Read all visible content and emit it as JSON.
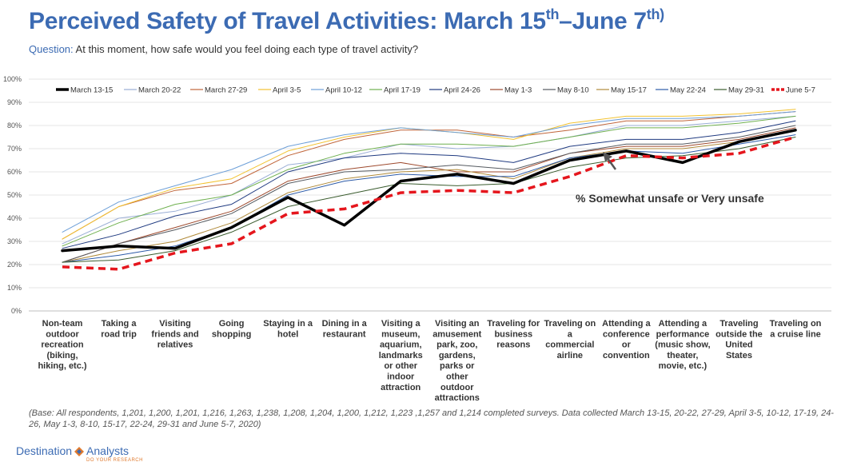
{
  "header": {
    "title_main": "Perceived Safety of Travel Activities: March 15",
    "title_sup1": "th",
    "title_mid": "–June 7",
    "title_sup2": "th)",
    "question_label": "Question:",
    "question_text": " At this moment, how safe would you feel doing each type of travel activity?"
  },
  "footer": {
    "base_note": "(Base: All respondents, 1,201, 1,200, 1,201, 1,216, 1,263, 1,238, 1,208, 1,204, 1,200, 1,212, 1,223 ,1,257 and 1,214 completed surveys. Data collected March 13-15, 20-22, 27-29, April 3-5, 10-12, 17-19, 24-26, May 1-3, 8-10, 15-17, 22-24, 29-31 and June 5-7, 2020)",
    "logo_text": "Destination",
    "logo_text2": "Analysts",
    "logo_tagline": "DO YOUR RESEARCH"
  },
  "chart_data": {
    "type": "line",
    "ylim": [
      0,
      100
    ],
    "yticks": [
      "0%",
      "10%",
      "20%",
      "30%",
      "40%",
      "50%",
      "60%",
      "70%",
      "80%",
      "90%",
      "100%"
    ],
    "categories": [
      "Non-team outdoor recreation (biking, hiking, etc.)",
      "Taking a road trip",
      "Visiting friends and relatives",
      "Going shopping",
      "Staying in a hotel",
      "Dining in a restaurant",
      "Visiting a museum, aquarium, landmarks or other indoor attraction",
      "Visiting an amusement park, zoo, gardens, parks or other outdoor attractions",
      "Traveling for business reasons",
      "Traveling on a commercial airline",
      "Attending a conference or convention",
      "Attending a performance (music show, theater, movie, etc.)",
      "Traveling outside the United States",
      "Traveling on a cruise line"
    ],
    "category_lines": [
      [
        "Non-team",
        "outdoor",
        "recreation",
        "(biking,",
        "hiking, etc.)"
      ],
      [
        "Taking a",
        "road trip"
      ],
      [
        "Visiting",
        "friends and",
        "relatives"
      ],
      [
        "Going",
        "shopping"
      ],
      [
        "Staying in a",
        "hotel"
      ],
      [
        "Dining in a",
        "restaurant"
      ],
      [
        "Visiting a",
        "museum,",
        "aquarium,",
        "landmarks",
        "or other",
        "indoor",
        "attraction"
      ],
      [
        "Visiting an",
        "amusement",
        "park, zoo,",
        "gardens,",
        "parks or",
        "other",
        "outdoor",
        "attractions"
      ],
      [
        "Traveling for",
        "business",
        "reasons"
      ],
      [
        "Traveling on",
        "a",
        "commercial",
        "airline"
      ],
      [
        "Attending a",
        "conference",
        "or",
        "convention"
      ],
      [
        "Attending a",
        "performance",
        "(music show,",
        "theater,",
        "movie, etc.)"
      ],
      [
        "Traveling",
        "outside the",
        "United",
        "States"
      ],
      [
        "Traveling on",
        "a cruise line"
      ]
    ],
    "series": [
      {
        "name": "March 13-15",
        "color": "#000000",
        "style": "bold",
        "values": [
          26,
          28,
          27,
          36,
          49,
          37,
          56,
          59,
          55,
          65,
          69,
          64,
          73,
          78
        ]
      },
      {
        "name": "March 20-22",
        "color": "#9aaed6",
        "style": "thin",
        "values": [
          29,
          40,
          43,
          50,
          63,
          66,
          72,
          70,
          71,
          75,
          80,
          80,
          82,
          84
        ]
      },
      {
        "name": "March 27-29",
        "color": "#c0653a",
        "style": "thin",
        "values": [
          31,
          45,
          52,
          55,
          67,
          74,
          78,
          78,
          75,
          78,
          82,
          82,
          84,
          86
        ]
      },
      {
        "name": "April 3-5",
        "color": "#f2c230",
        "style": "thin",
        "values": [
          31,
          45,
          53,
          57,
          69,
          75,
          79,
          77,
          74,
          81,
          84,
          84,
          85,
          87
        ]
      },
      {
        "name": "April 10-12",
        "color": "#6d9fd8",
        "style": "thin",
        "values": [
          34,
          47,
          54,
          61,
          71,
          76,
          79,
          77,
          75,
          80,
          83,
          83,
          84,
          86
        ]
      },
      {
        "name": "April 17-19",
        "color": "#6fb04f",
        "style": "thin",
        "values": [
          28,
          38,
          46,
          50,
          61,
          68,
          72,
          72,
          71,
          75,
          79,
          79,
          81,
          84
        ]
      },
      {
        "name": "April 24-26",
        "color": "#1f3a80",
        "style": "thin",
        "values": [
          27,
          33,
          41,
          46,
          60,
          66,
          68,
          67,
          64,
          71,
          74,
          74,
          77,
          82
        ]
      },
      {
        "name": "May 1-3",
        "color": "#9e4a2e",
        "style": "thin",
        "values": [
          21,
          29,
          36,
          43,
          56,
          61,
          64,
          60,
          60,
          68,
          71,
          71,
          74,
          79
        ]
      },
      {
        "name": "May 8-10",
        "color": "#555a60",
        "style": "thin",
        "values": [
          21,
          29,
          35,
          42,
          55,
          60,
          61,
          63,
          61,
          68,
          72,
          72,
          75,
          80
        ]
      },
      {
        "name": "May 15-17",
        "color": "#b08a3a",
        "style": "thin",
        "values": [
          21,
          26,
          30,
          38,
          51,
          57,
          60,
          61,
          57,
          66,
          70,
          70,
          73,
          78
        ]
      },
      {
        "name": "May 22-24",
        "color": "#2d5ba8",
        "style": "thin",
        "values": [
          21,
          24,
          28,
          36,
          50,
          56,
          59,
          58,
          58,
          66,
          69,
          68,
          72,
          76
        ]
      },
      {
        "name": "May 29-31",
        "color": "#3a5c2e",
        "style": "thin",
        "values": [
          21,
          22,
          26,
          34,
          45,
          50,
          55,
          54,
          55,
          62,
          66,
          67,
          70,
          75
        ]
      },
      {
        "name": "June 5-7",
        "color": "#e5161d",
        "style": "dash",
        "values": [
          19,
          18,
          25,
          29,
          42,
          44,
          51,
          52,
          51,
          58,
          67,
          66,
          68,
          75
        ]
      }
    ],
    "annotation": "% Somewhat unsafe or Very unsafe",
    "legend": "top"
  }
}
